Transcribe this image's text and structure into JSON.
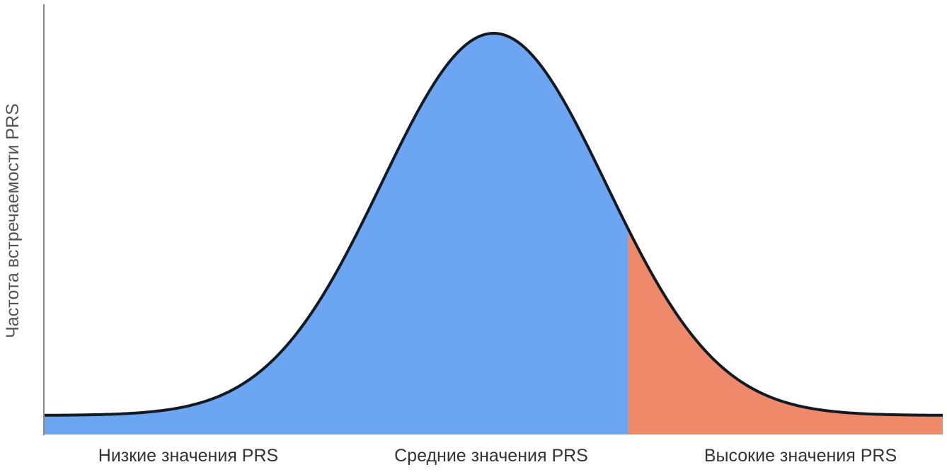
{
  "chart_data": {
    "type": "area",
    "title": "",
    "xlabel": "",
    "ylabel": "Частота встречаемости PRS",
    "categories": [
      "Низкие значения PRS",
      "Средние значения PRS",
      "Высокие значения PRS"
    ],
    "regions": [
      {
        "label": "Средние значения PRS",
        "from": -4.0,
        "to": 1.2,
        "color": "#6ca6f2"
      },
      {
        "label": "Высокие значения PRS",
        "from": 1.2,
        "to": 4.0,
        "color": "#ee8a6a"
      }
    ],
    "x_range": [
      -4.0,
      4.0
    ],
    "distribution": {
      "kind": "normal",
      "mean": 0,
      "sd": 1
    },
    "grid": false,
    "legend": "none",
    "colors": {
      "curve": "#141a22",
      "axis": "#8a8a8a",
      "label": "#333333",
      "ylabel": "#555555"
    }
  }
}
